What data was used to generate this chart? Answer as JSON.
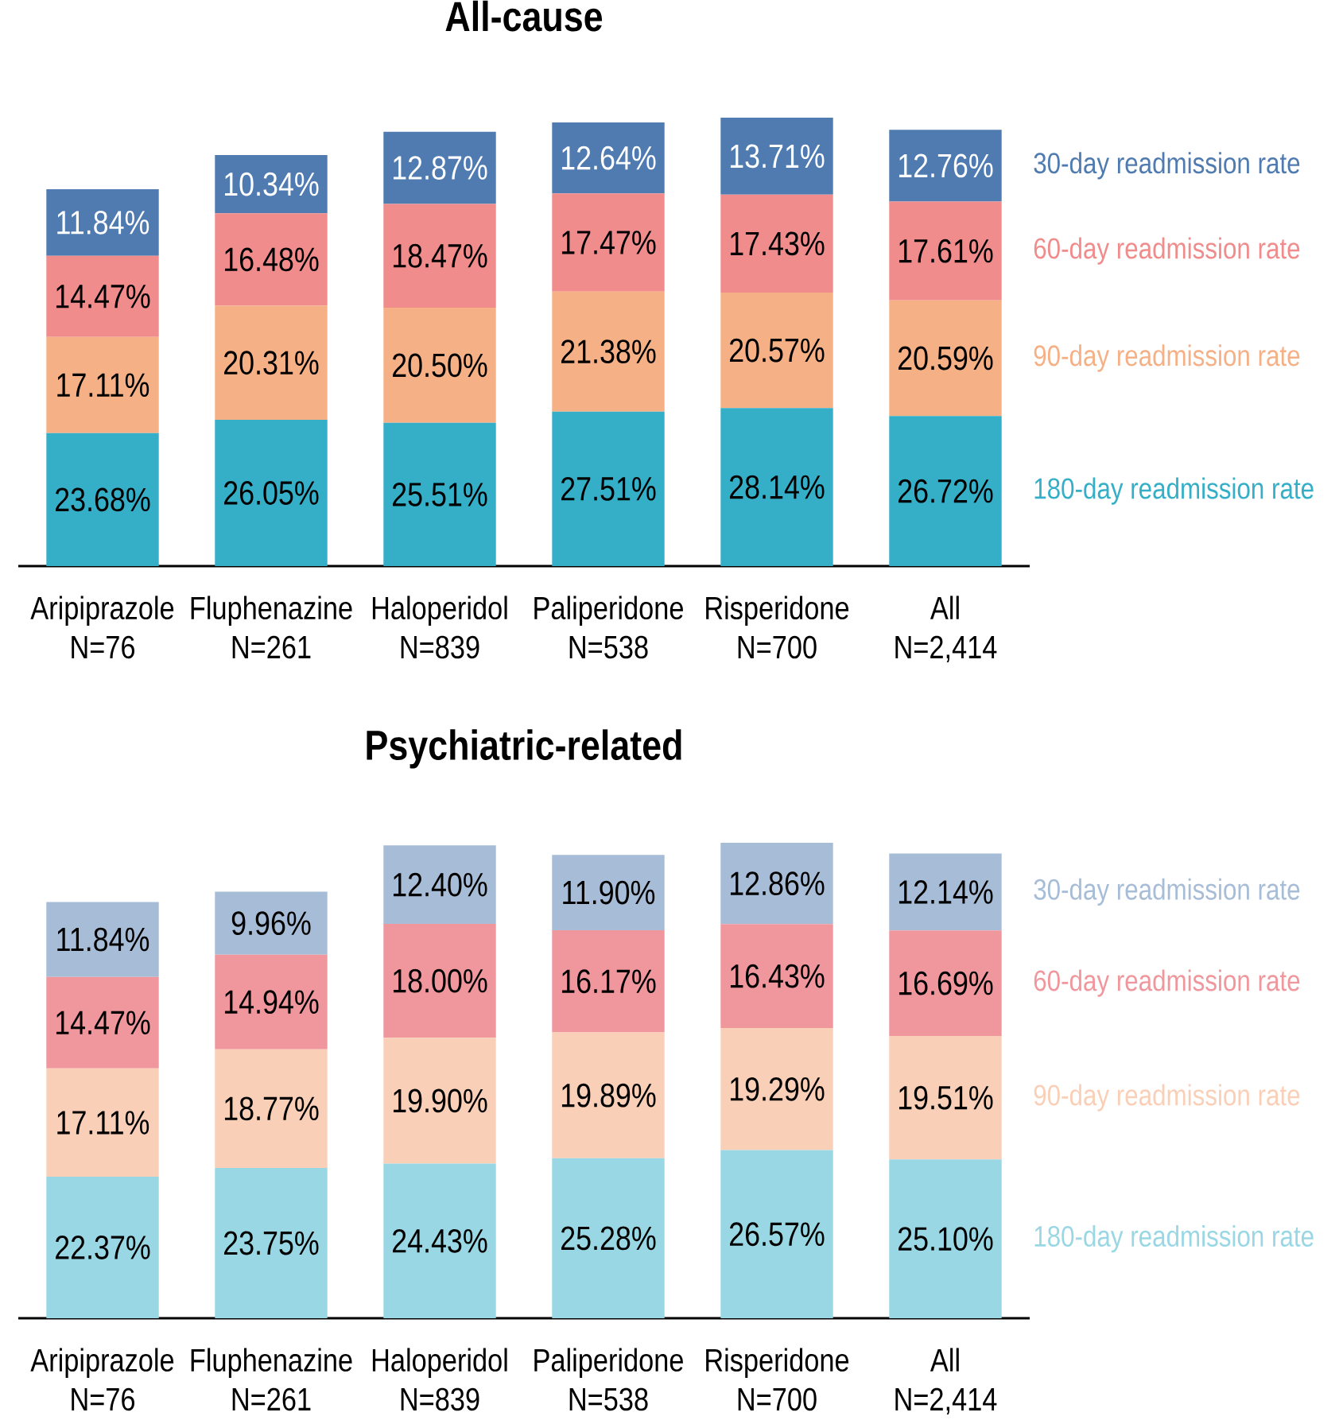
{
  "chart_data": [
    {
      "type": "bar",
      "stacked": true,
      "title": "All-cause",
      "categories": [
        "Aripiprazole N=76",
        "Fluphenazine N=261",
        "Haloperidol N=839",
        "Paliperidone N=538",
        "Risperidone N=700",
        "All N=2,414"
      ],
      "series": [
        {
          "name": "180-day readmission rate",
          "color": "#35afc8",
          "values": [
            23.68,
            26.05,
            25.51,
            27.51,
            28.14,
            26.72
          ],
          "value_labels": [
            "23.68%",
            "26.05%",
            "25.51%",
            "27.51%",
            "28.14%",
            "26.72%"
          ]
        },
        {
          "name": "90-day readmission rate",
          "color": "#f5b086",
          "values": [
            17.11,
            20.31,
            20.5,
            21.38,
            20.57,
            20.59
          ],
          "value_labels": [
            "17.11%",
            "20.31%",
            "20.50%",
            "21.38%",
            "20.57%",
            "20.59%"
          ]
        },
        {
          "name": "60-day readmission rate",
          "color": "#f08c8c",
          "values": [
            14.47,
            16.48,
            18.47,
            17.47,
            17.43,
            17.61
          ],
          "value_labels": [
            "14.47%",
            "16.48%",
            "18.47%",
            "17.47%",
            "17.43%",
            "17.61%"
          ]
        },
        {
          "name": "30-day readmission rate",
          "color": "#4f7bb0",
          "values": [
            11.84,
            10.34,
            12.87,
            12.64,
            13.71,
            12.76
          ],
          "value_labels": [
            "11.84%",
            "10.34%",
            "12.87%",
            "12.64%",
            "13.71%",
            "12.76%"
          ]
        }
      ]
    },
    {
      "type": "bar",
      "stacked": true,
      "title": "Psychiatric-related",
      "categories": [
        "Aripiprazole N=76",
        "Fluphenazine N=261",
        "Haloperidol N=839",
        "Paliperidone N=538",
        "Risperidone N=700",
        "All N=2,414"
      ],
      "series": [
        {
          "name": "180-day readmission rate",
          "color": "#9ad7e4",
          "values": [
            22.37,
            23.75,
            24.43,
            25.28,
            26.57,
            25.1
          ],
          "value_labels": [
            "22.37%",
            "23.75%",
            "24.43%",
            "25.28%",
            "26.57%",
            "25.10%"
          ]
        },
        {
          "name": "90-day readmission rate",
          "color": "#facfb7",
          "values": [
            17.11,
            18.77,
            19.9,
            19.89,
            19.29,
            19.51
          ],
          "value_labels": [
            "17.11%",
            "18.77%",
            "19.90%",
            "19.89%",
            "19.29%",
            "19.51%"
          ]
        },
        {
          "name": "60-day readmission rate",
          "color": "#ef979c",
          "values": [
            14.47,
            14.94,
            18.0,
            16.17,
            16.43,
            16.69
          ],
          "value_labels": [
            "14.47%",
            "14.94%",
            "18.00%",
            "16.17%",
            "16.43%",
            "16.69%"
          ]
        },
        {
          "name": "30-day readmission rate",
          "color": "#a7bdd7",
          "values": [
            11.84,
            9.96,
            12.4,
            11.9,
            12.86,
            12.14
          ],
          "value_labels": [
            "11.84%",
            "9.96%",
            "12.40%",
            "11.90%",
            "12.86%",
            "12.14%"
          ]
        }
      ]
    }
  ]
}
